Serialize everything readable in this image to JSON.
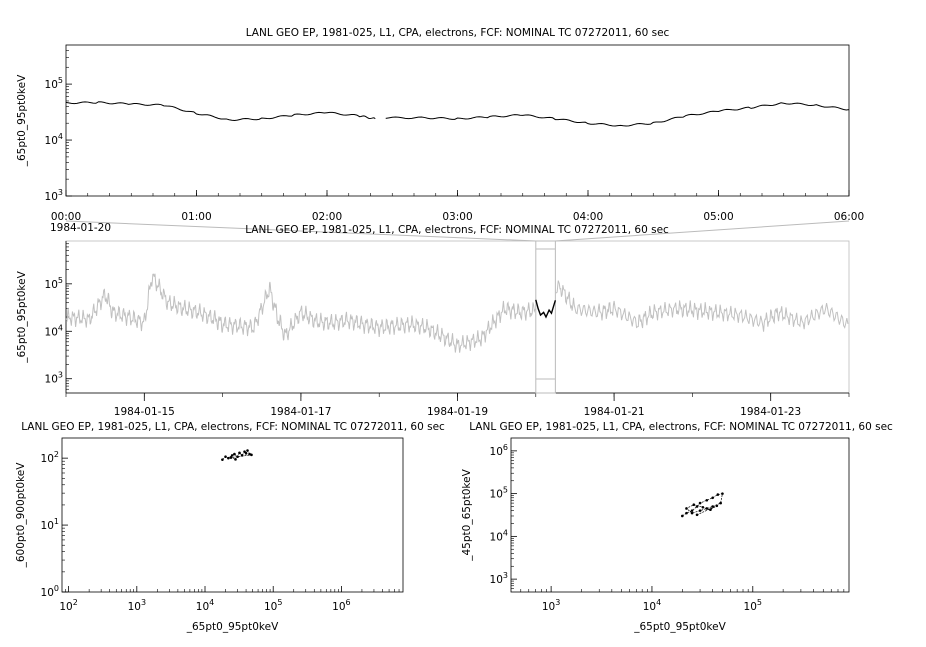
{
  "chart_data": [
    {
      "type": "line",
      "title": "LANL GEO EP, 1981-025, L1, CPA, electrons, FCF: NOMINAL TC 07272011, 60 sec",
      "ylabel": "_65pt0_95pt0keV",
      "yscale": "log",
      "ylim": [
        1000,
        500000
      ],
      "y_ticks": [
        "10^3",
        "10^4",
        "10^5"
      ],
      "x_ticks": [
        "00:00",
        "01:00",
        "02:00",
        "03:00",
        "04:00",
        "05:00",
        "06:00"
      ],
      "x_date_label": "1984-01-20",
      "xlim_hours": [
        0,
        6
      ],
      "data_gap_hours": [
        2.37,
        2.45
      ],
      "series": [
        {
          "x_hours": [
            0.0,
            0.25,
            0.5,
            0.75,
            1.0,
            1.25,
            1.5,
            1.75,
            2.0,
            2.25,
            2.37,
            2.45,
            2.75,
            3.0,
            3.25,
            3.5,
            3.75,
            4.0,
            4.25,
            4.5,
            4.75,
            5.0,
            5.25,
            5.5,
            5.75,
            6.0
          ],
          "y": [
            46000,
            47000,
            44000,
            42000,
            30000,
            23000,
            24000,
            28000,
            31000,
            27000,
            24000,
            25000,
            25000,
            24000,
            26000,
            28000,
            24000,
            20000,
            18000,
            20000,
            27000,
            33000,
            38000,
            46000,
            42000,
            35000
          ]
        }
      ]
    },
    {
      "type": "line",
      "title": "LANL GEO EP, 1981-025, L1, CPA, electrons, FCF: NOMINAL TC 07272011, 60 sec",
      "ylabel": "_65pt0_95pt0keV",
      "yscale": "log",
      "ylim": [
        500,
        800000
      ],
      "y_ticks": [
        "10^3",
        "10^4",
        "10^5"
      ],
      "x_ticks": [
        "1984-01-15",
        "1984-01-17",
        "1984-01-19",
        "1984-01-21",
        "1984-01-23"
      ],
      "xlim_days": [
        14.0,
        24.0
      ],
      "highlight_days": [
        20.0,
        20.25
      ],
      "series": [
        {
          "x_days": [
            14.0,
            14.3,
            14.5,
            14.6,
            14.8,
            15.0,
            15.1,
            15.3,
            15.5,
            15.7,
            15.9,
            16.0,
            16.2,
            16.4,
            16.6,
            16.7,
            16.8,
            17.0,
            17.2,
            17.4,
            17.6,
            17.8,
            18.0,
            18.2,
            18.4,
            18.6,
            18.8,
            19.0,
            19.3,
            19.6,
            19.8,
            20.0,
            20.3,
            20.5,
            20.8,
            21.0,
            21.3,
            21.5,
            21.8,
            22.0,
            22.3,
            22.6,
            22.9,
            23.1,
            23.4,
            23.7,
            24.0
          ],
          "y": [
            20000,
            18000,
            60000,
            25000,
            20000,
            15000,
            150000,
            40000,
            30000,
            25000,
            18000,
            14000,
            13000,
            12000,
            80000,
            20000,
            8000,
            25000,
            16000,
            15000,
            17000,
            14000,
            12000,
            13000,
            14000,
            12000,
            8000,
            5000,
            7000,
            30000,
            25000,
            28000,
            90000,
            30000,
            25000,
            30000,
            15000,
            25000,
            30000,
            28000,
            25000,
            22000,
            15000,
            25000,
            15000,
            30000,
            13000
          ]
        }
      ],
      "highlight_series": {
        "x_days": [
          20.0,
          20.03,
          20.06,
          20.1,
          20.13,
          20.17,
          20.2,
          20.23,
          20.25
        ],
        "y": [
          46000,
          30000,
          22000,
          25000,
          20000,
          28000,
          24000,
          35000,
          45000
        ]
      }
    },
    {
      "type": "scatter",
      "title": "LANL GEO EP, 1981-025, L1, CPA, electrons, FCF: NOMINAL TC 07272011, 60 sec",
      "xlabel": "_65pt0_95pt0keV",
      "ylabel": "_600pt0_900pt0keV",
      "xscale": "log",
      "yscale": "log",
      "xlim": [
        80,
        8000000
      ],
      "ylim": [
        1,
        200
      ],
      "x_ticks": [
        "10^2",
        "10^3",
        "10^4",
        "10^5",
        "10^6"
      ],
      "y_ticks": [
        "10^0",
        "10^1",
        "10^2"
      ],
      "points": [
        [
          18000,
          95
        ],
        [
          20000,
          105
        ],
        [
          22000,
          100
        ],
        [
          25000,
          110
        ],
        [
          27000,
          115
        ],
        [
          30000,
          105
        ],
        [
          32000,
          120
        ],
        [
          35000,
          110
        ],
        [
          38000,
          125
        ],
        [
          40000,
          118
        ],
        [
          42000,
          130
        ],
        [
          45000,
          115
        ],
        [
          48000,
          112
        ],
        [
          24000,
          102
        ],
        [
          28000,
          96
        ]
      ]
    },
    {
      "type": "scatter",
      "title": "LANL GEO EP, 1981-025, L1, CPA, electrons, FCF: NOMINAL TC 07272011, 60 sec",
      "xlabel": "_65pt0_95pt0keV",
      "ylabel": "_45pt0_65pt0keV",
      "xscale": "log",
      "yscale": "log",
      "xlim": [
        400,
        900000
      ],
      "ylim": [
        500,
        2000000
      ],
      "x_ticks": [
        "10^3",
        "10^4",
        "10^5"
      ],
      "y_ticks": [
        "10^3",
        "10^4",
        "10^5",
        "10^6"
      ],
      "points": [
        [
          20000,
          30000
        ],
        [
          22000,
          35000
        ],
        [
          25000,
          40000
        ],
        [
          28000,
          50000
        ],
        [
          30000,
          60000
        ],
        [
          35000,
          70000
        ],
        [
          40000,
          80000
        ],
        [
          45000,
          95000
        ],
        [
          50000,
          100000
        ],
        [
          48000,
          60000
        ],
        [
          40000,
          50000
        ],
        [
          35000,
          45000
        ],
        [
          30000,
          40000
        ],
        [
          25000,
          35000
        ],
        [
          22000,
          45000
        ],
        [
          26000,
          55000
        ],
        [
          32000,
          48000
        ],
        [
          38000,
          42000
        ],
        [
          44000,
          52000
        ],
        [
          28000,
          32000
        ]
      ]
    }
  ]
}
